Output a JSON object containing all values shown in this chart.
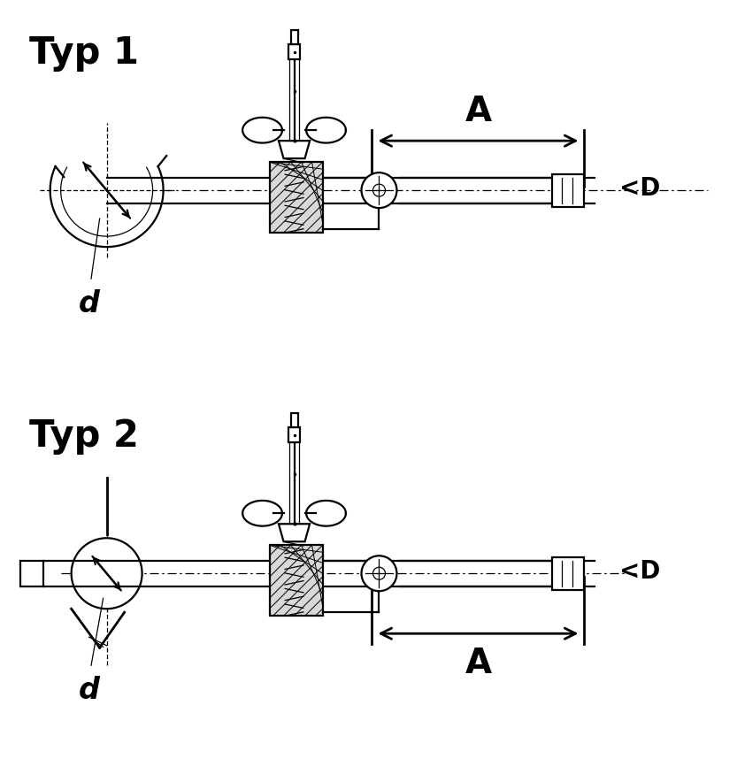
{
  "bg_color": "#ffffff",
  "line_color": "#000000",
  "title1": "Typ 1",
  "title2": "Typ 2",
  "label_A": "A",
  "label_D": "<D",
  "label_d": "d",
  "title_fontsize": 30,
  "label_A_fontsize": 28,
  "label_Dd_fontsize": 20
}
